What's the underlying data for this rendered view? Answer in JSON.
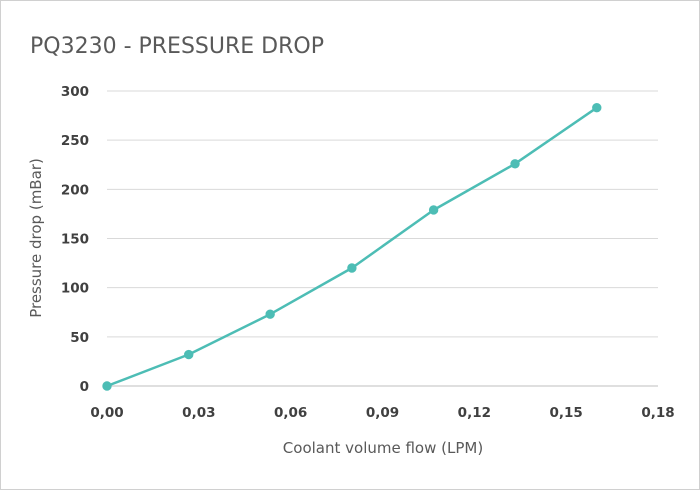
{
  "chart_data": {
    "type": "line",
    "title": "PQ3230 - PRESSURE DROP",
    "xlabel": "Coolant volume flow (LPM)",
    "ylabel": "Pressure drop (mBar)",
    "xlim": [
      0,
      0.18
    ],
    "ylim": [
      0,
      300
    ],
    "x_ticks": [
      "0,00",
      "0,03",
      "0,06",
      "0,09",
      "0,12",
      "0,15",
      "0,18"
    ],
    "y_ticks": [
      "0",
      "50",
      "100",
      "150",
      "200",
      "250",
      "300"
    ],
    "grid": true,
    "legend": "none",
    "color": "#4dbdb5",
    "series": [
      {
        "x": [
          0.0,
          0.0267,
          0.0533,
          0.08,
          0.1067,
          0.1333,
          0.16
        ],
        "y": [
          0,
          32,
          73,
          120,
          179,
          226,
          283
        ]
      }
    ]
  }
}
